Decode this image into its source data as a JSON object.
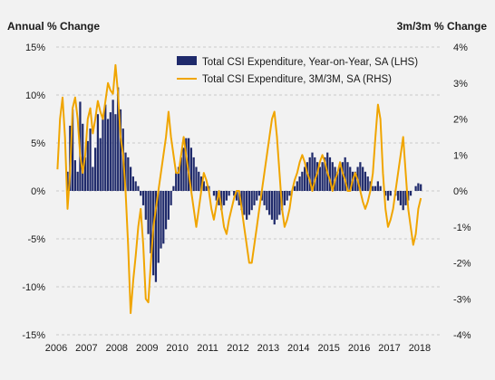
{
  "chart_data": {
    "type": "bar",
    "left_axis_title": "Annual % Change",
    "right_axis_title": "3m/3m % Change",
    "left_ticks": [
      "15%",
      "10%",
      "5%",
      "0%",
      "-5%",
      "-10%",
      "-15%"
    ],
    "right_ticks": [
      "4%",
      "3%",
      "2%",
      "1%",
      "0%",
      "-1%",
      "-2%",
      "-3%",
      "-4%"
    ],
    "x_ticks": [
      "2006",
      "2007",
      "2008",
      "2009",
      "2010",
      "2011",
      "2012",
      "2013",
      "2014",
      "2015",
      "2016",
      "2017",
      "2018"
    ],
    "ylim_left": [
      -15,
      15
    ],
    "ylim_right": [
      -4,
      4
    ],
    "x_range": [
      2006.0,
      2018.75
    ],
    "grid": "horizontal dashed",
    "legend_position": "top-right",
    "colors": {
      "bars": "#1f2a6b",
      "line": "#f0a500",
      "background": "#f2f2f2",
      "grid": "#bdbdbd"
    },
    "series": [
      {
        "name": "Total CSI Expenditure, Year-on-Year, SA (LHS)",
        "axis": "left",
        "type": "bar",
        "x_start": 2006.0,
        "x_step": 0.0833,
        "values": [
          0,
          0,
          0,
          0,
          2.0,
          6.8,
          8.5,
          3.2,
          2.0,
          9.3,
          7.0,
          3.5,
          5.2,
          6.5,
          2.5,
          4.5,
          8.0,
          5.5,
          7.5,
          9.0,
          7.5,
          8.2,
          9.5,
          8.0,
          10.8,
          8.5,
          6.5,
          4.0,
          3.5,
          2.5,
          1.5,
          1.0,
          0.5,
          -0.5,
          -1.5,
          -3.0,
          -4.5,
          -6.5,
          -8.8,
          -9.5,
          -7.5,
          -6.0,
          -5.5,
          -4.0,
          -3.0,
          -1.5,
          0.5,
          2.0,
          2.5,
          3.5,
          4.5,
          5.5,
          5.5,
          4.5,
          3.5,
          2.5,
          2.0,
          1.5,
          1.0,
          0.5,
          0.5,
          0.0,
          -0.5,
          -1.0,
          -1.5,
          -2.0,
          -1.5,
          -1.0,
          -0.5,
          0.0,
          -0.5,
          -1.0,
          -1.5,
          -2.0,
          -2.5,
          -3.0,
          -2.5,
          -2.0,
          -1.5,
          -1.0,
          -0.5,
          -1.0,
          -1.5,
          -2.0,
          -2.5,
          -3.0,
          -3.5,
          -3.0,
          -2.5,
          -2.0,
          -1.5,
          -1.0,
          -0.5,
          0.0,
          0.5,
          1.0,
          1.5,
          2.0,
          2.5,
          3.0,
          3.5,
          4.0,
          3.5,
          3.0,
          2.5,
          3.0,
          3.5,
          4.0,
          3.5,
          3.0,
          2.5,
          2.0,
          2.5,
          3.0,
          3.5,
          3.0,
          2.5,
          2.0,
          2.0,
          2.5,
          3.0,
          2.5,
          2.0,
          1.5,
          1.0,
          0.5,
          0.5,
          1.0,
          0.5,
          0.0,
          -0.5,
          -1.0,
          -0.5,
          0.0,
          -0.5,
          -1.0,
          -1.5,
          -2.0,
          -1.5,
          -1.0,
          -0.5,
          0.0,
          0.5,
          0.8,
          0.7
        ]
      },
      {
        "name": "Total CSI Expenditure, 3M/3M, SA (RHS)",
        "axis": "right",
        "type": "line",
        "x_start": 2006.0,
        "x_step": 0.0833,
        "values": [
          0.6,
          2.0,
          2.6,
          1.5,
          -0.5,
          0.5,
          2.3,
          2.6,
          2.0,
          1.0,
          0.5,
          1.0,
          2.0,
          2.3,
          1.6,
          2.0,
          2.5,
          2.2,
          2.0,
          2.5,
          3.0,
          2.8,
          2.7,
          3.5,
          2.7,
          1.5,
          1.0,
          0.0,
          -1.5,
          -3.4,
          -2.5,
          -1.8,
          -1.0,
          -0.5,
          -1.5,
          -3.0,
          -3.1,
          -2.0,
          -1.0,
          -0.5,
          0.0,
          0.5,
          1.0,
          1.5,
          2.2,
          1.5,
          1.0,
          0.5,
          0.5,
          1.0,
          1.5,
          1.0,
          0.5,
          0.0,
          -0.5,
          -1.0,
          -0.5,
          0.0,
          0.5,
          0.3,
          0.0,
          -0.5,
          -0.8,
          -0.4,
          0.0,
          -0.5,
          -1.0,
          -1.2,
          -0.8,
          -0.5,
          -0.2,
          0.0,
          0.0,
          -0.5,
          -1.0,
          -1.5,
          -2.0,
          -2.0,
          -1.5,
          -1.0,
          -0.5,
          0.0,
          0.5,
          1.0,
          1.5,
          2.0,
          2.2,
          1.5,
          0.5,
          -0.5,
          -1.0,
          -0.8,
          -0.5,
          0.0,
          0.3,
          0.5,
          0.8,
          1.0,
          0.8,
          0.5,
          0.3,
          0.0,
          0.3,
          0.5,
          0.8,
          1.0,
          0.8,
          0.5,
          0.3,
          0.0,
          0.3,
          0.5,
          0.8,
          0.5,
          0.3,
          0.0,
          0.0,
          0.3,
          0.5,
          0.3,
          0.0,
          -0.3,
          -0.5,
          -0.3,
          0.0,
          0.5,
          1.5,
          2.4,
          2.0,
          0.5,
          -0.5,
          -1.0,
          -0.8,
          -0.5,
          0.0,
          0.5,
          1.0,
          1.5,
          0.5,
          -0.5,
          -1.0,
          -1.5,
          -1.2,
          -0.5,
          -0.2
        ]
      }
    ]
  }
}
